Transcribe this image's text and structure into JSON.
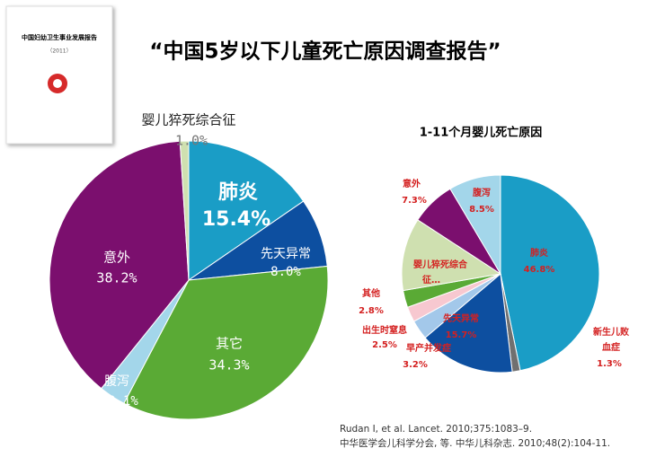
{
  "title": "“中国5岁以下儿童死亡原因调查报告”",
  "book": {
    "title": "中国妇幼卫生事业发展报告",
    "year": "（2011）"
  },
  "chart_data": [
    {
      "type": "pie",
      "categories": [
        "肺炎",
        "先天异常",
        "其它",
        "腹泻",
        "意外",
        "婴儿猝死综合征"
      ],
      "values": [
        15.4,
        8.0,
        34.3,
        3.1,
        38.2,
        1.0
      ],
      "value_labels": [
        "15.4%",
        "8.0%",
        "34.3%",
        "3.1%",
        "38.2%",
        "1.0%"
      ],
      "colors": [
        "#1a9dc6",
        "#0d4fa0",
        "#5aaa35",
        "#a3d6ea",
        "#7b0f6e",
        "#cfe0b0"
      ]
    },
    {
      "type": "pie",
      "title": "1-11个月婴儿死亡原因",
      "categories": [
        "肺炎",
        "新生儿败血症",
        "先天异常",
        "早产并发症",
        "出生时窒息",
        "其他",
        "婴儿猝死综合征…",
        "意外",
        "腹泻"
      ],
      "values": [
        46.8,
        1.3,
        15.7,
        3.2,
        2.5,
        2.8,
        11.9,
        7.3,
        8.5
      ],
      "value_labels": [
        "46.8%",
        "1.3%",
        "15.7%",
        "3.2%",
        "2.5%",
        "2.8%",
        null,
        "7.3%",
        "8.5%"
      ],
      "colors": [
        "#1a9dc6",
        "#707070",
        "#0d4fa0",
        "#a3c8ea",
        "#f7c8d0",
        "#5aaa35",
        "#cfe0b0",
        "#7b0f6e",
        "#a3d6ea"
      ]
    }
  ],
  "citation": [
    "Rudan I, et al. Lancet. 2010;375:1083–9.",
    "中华医学会儿科学分会, 等. 中华儿科杂志. 2010;48(2):104-11."
  ]
}
